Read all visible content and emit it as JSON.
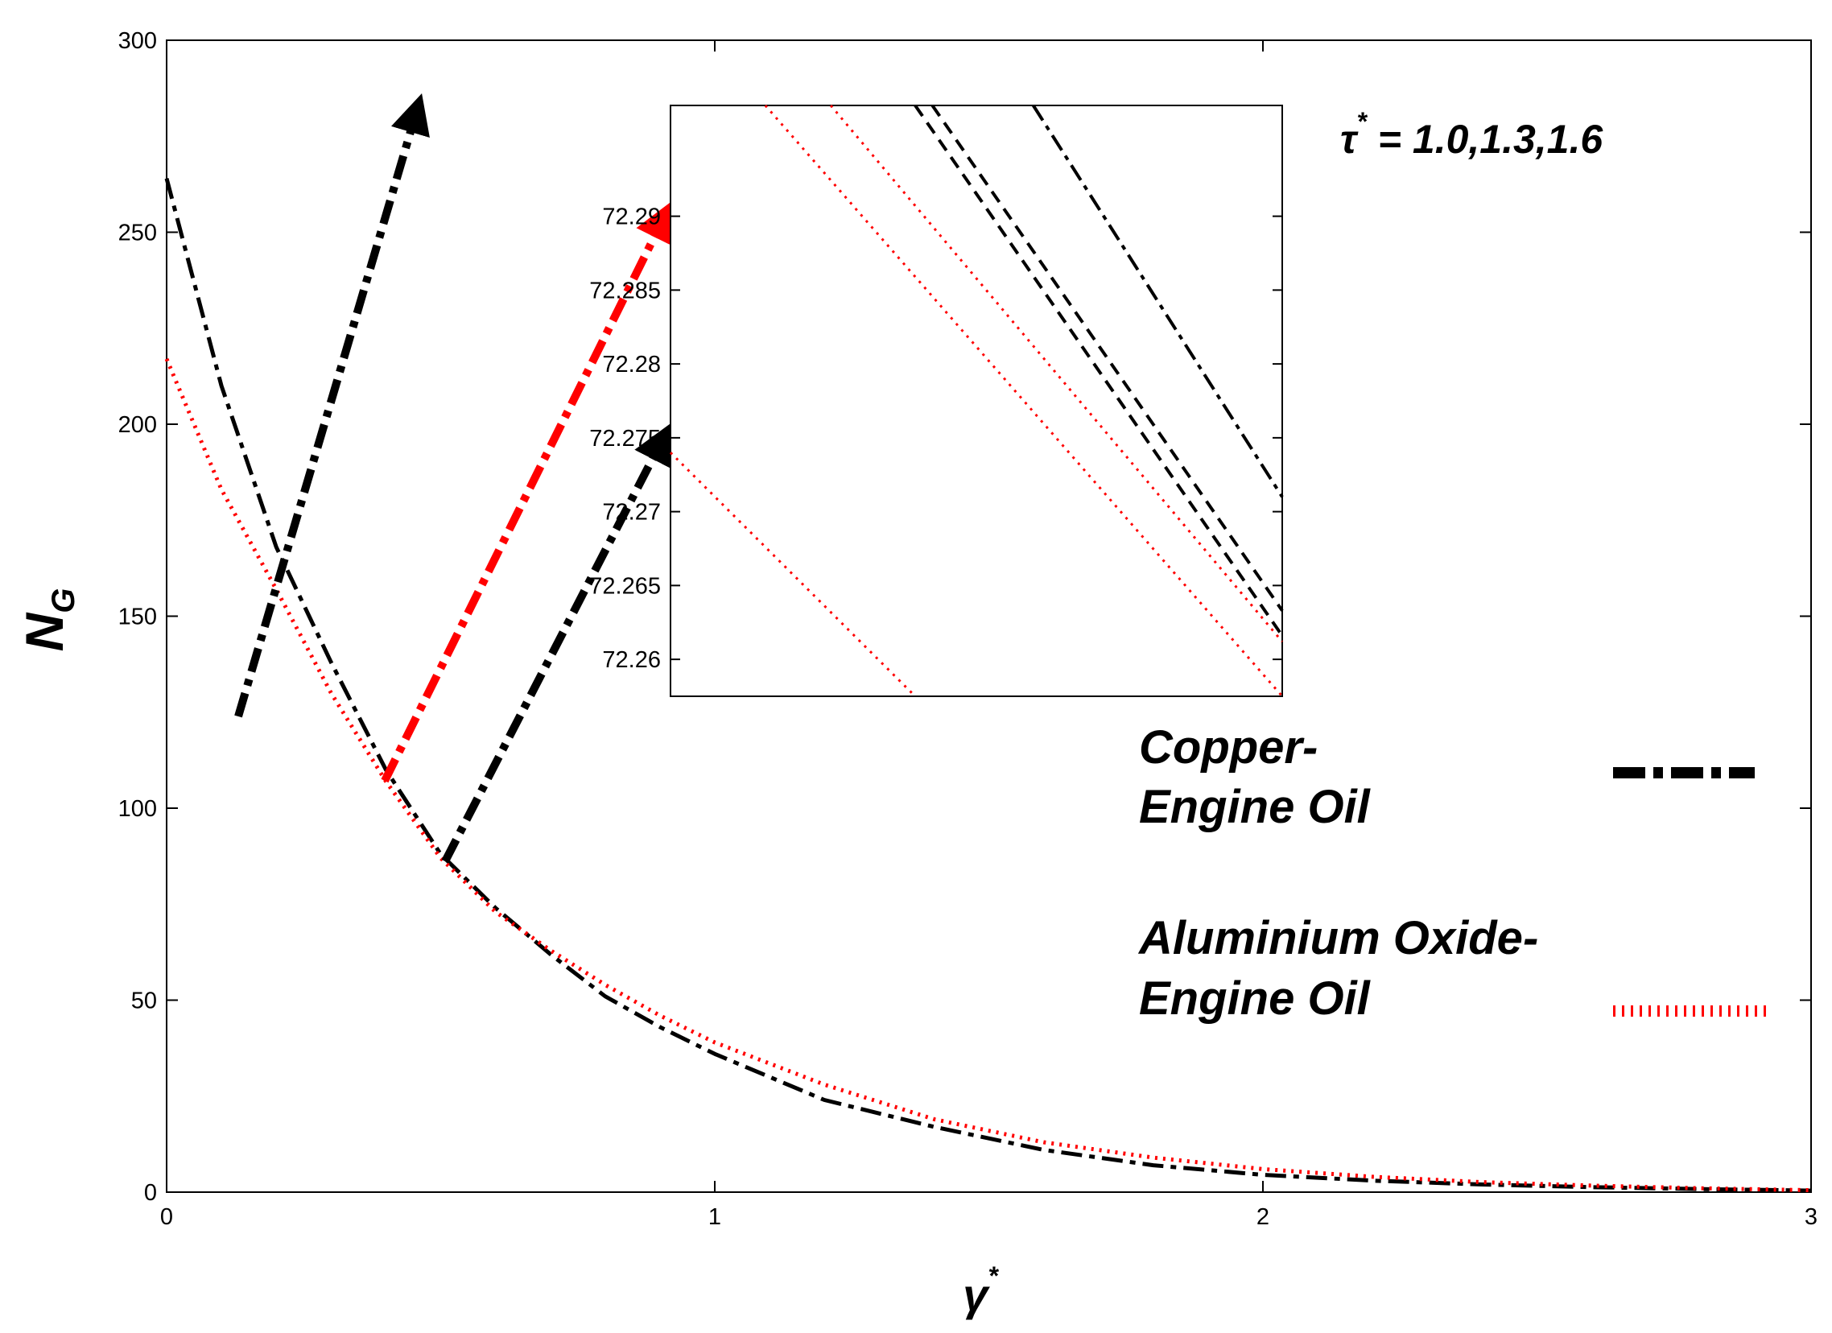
{
  "chart_data": [
    {
      "type": "line",
      "xlabel": "γ*",
      "ylabel": "N_G",
      "xlim": [
        0,
        3
      ],
      "ylim": [
        0,
        300
      ],
      "x_ticks": [
        "0",
        "1",
        "2",
        "3"
      ],
      "y_ticks": [
        "0",
        "50",
        "100",
        "150",
        "200",
        "250",
        "300"
      ],
      "grid": false,
      "annotation": "τ* = 1.0,1.3,1.6",
      "legend": {
        "position": "right",
        "entries": [
          {
            "label_lines": [
              "Copper-",
              "Engine Oil"
            ],
            "color": "#000000",
            "style": "dash-dot"
          },
          {
            "label_lines": [
              "Aluminium Oxide-",
              "Engine Oil"
            ],
            "color": "#ff0000",
            "style": "dotted"
          }
        ]
      },
      "series": [
        {
          "name": "Copper-Engine Oil",
          "color": "#000000",
          "x": [
            0,
            0.1,
            0.2,
            0.3,
            0.4,
            0.5,
            0.6,
            0.7,
            0.8,
            0.9,
            1.0,
            1.2,
            1.4,
            1.6,
            1.8,
            2.0,
            2.2,
            2.4,
            2.6,
            2.8,
            3.0
          ],
          "y": [
            264,
            210,
            168,
            138,
            110,
            88,
            74,
            62,
            51,
            43,
            36,
            24,
            17,
            11,
            7,
            4.5,
            3,
            2,
            1.3,
            0.8,
            0.4
          ]
        },
        {
          "name": "Aluminium Oxide-Engine Oil",
          "color": "#ff0000",
          "x": [
            0,
            0.1,
            0.2,
            0.3,
            0.4,
            0.5,
            0.6,
            0.7,
            0.8,
            0.9,
            1.0,
            1.2,
            1.4,
            1.6,
            1.8,
            2.0,
            2.2,
            2.4,
            2.6,
            2.8,
            3.0
          ],
          "y": [
            217,
            183,
            157,
            130,
            107,
            87,
            73,
            63,
            54,
            46,
            39,
            28,
            19,
            13,
            9,
            6,
            4,
            2.6,
            1.7,
            1.0,
            0.5
          ]
        }
      ]
    },
    {
      "type": "line",
      "role": "inset",
      "xlabel": "",
      "ylabel": "",
      "ylim": [
        72.2575,
        72.2975
      ],
      "y_ticks": [
        "72.26",
        "72.265",
        "72.27",
        "72.275",
        "72.28",
        "72.285",
        "72.29"
      ],
      "series": [
        {
          "color": "#ff0000",
          "style": "dotted",
          "x": [
            0.0,
            0.4
          ],
          "y": [
            72.274,
            72.2575
          ]
        },
        {
          "color": "#ff0000",
          "style": "dotted",
          "x": [
            0.155,
            1.0
          ],
          "y": [
            72.2975,
            72.2575
          ]
        },
        {
          "color": "#ff0000",
          "style": "dotted",
          "x": [
            0.262,
            1.0
          ],
          "y": [
            72.2975,
            72.2612
          ]
        },
        {
          "color": "#000000",
          "style": "dashed",
          "x": [
            0.4,
            1.0
          ],
          "y": [
            72.2975,
            72.2616
          ]
        },
        {
          "color": "#000000",
          "style": "dashed",
          "x": [
            0.428,
            1.0
          ],
          "y": [
            72.2975,
            72.2633
          ]
        },
        {
          "color": "#000000",
          "style": "dash-dot",
          "x": [
            0.593,
            1.0
          ],
          "y": [
            72.2975,
            72.271
          ]
        }
      ]
    }
  ]
}
